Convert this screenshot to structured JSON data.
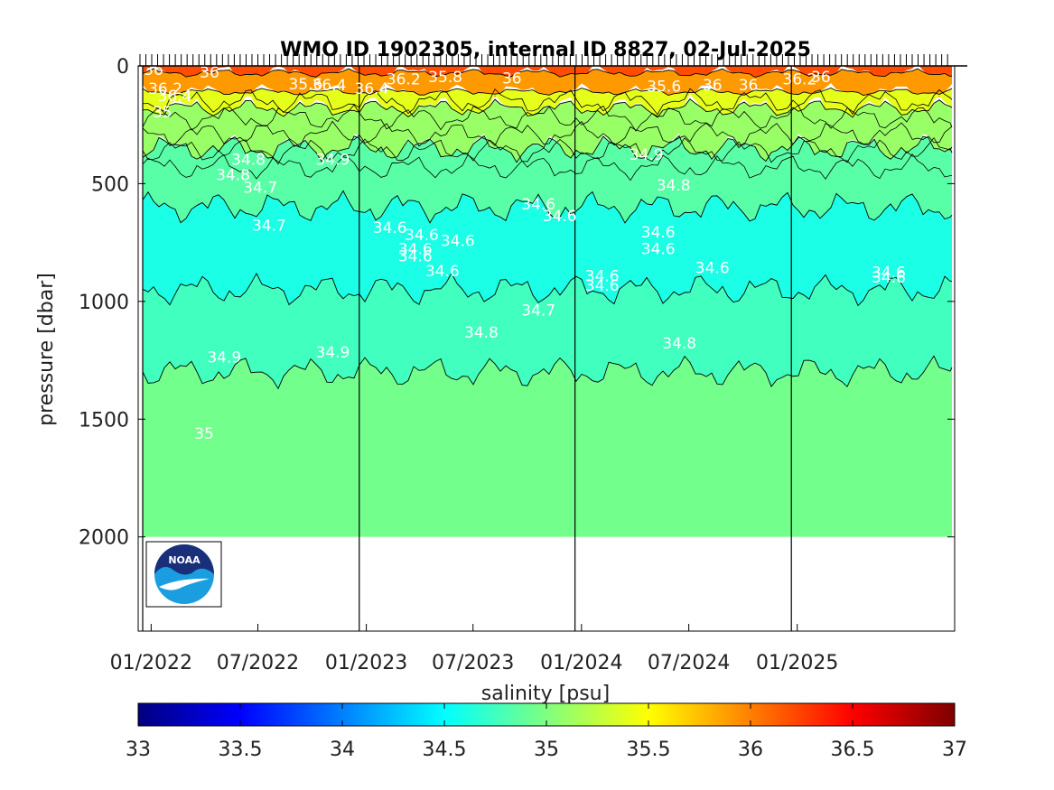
{
  "chart_data": {
    "type": "heatmap",
    "title": "WMO ID 1902305, internal ID 8827, 02-Jul-2025",
    "ylabel": "pressure [dbar]",
    "colorbar_label": "salinity [psu]",
    "y_reversed": true,
    "ylim": [
      0,
      2400
    ],
    "xlim": [
      "2021-12-10",
      "2025-09-25"
    ],
    "x_ticks": [
      {
        "date": "2022-01-01",
        "label": "01/2022"
      },
      {
        "date": "2022-07-01",
        "label": "07/2022"
      },
      {
        "date": "2023-01-01",
        "label": "01/2023"
      },
      {
        "date": "2023-07-01",
        "label": "07/2023"
      },
      {
        "date": "2024-01-01",
        "label": "01/2024"
      },
      {
        "date": "2024-07-01",
        "label": "07/2024"
      },
      {
        "date": "2025-01-01",
        "label": "01/2025"
      }
    ],
    "y_ticks": [
      0,
      500,
      1000,
      1500,
      2000
    ],
    "year_lines": [
      "2022-12-20",
      "2023-12-21",
      "2024-12-22"
    ],
    "colorbar": {
      "min": 33,
      "max": 37,
      "ticks": [
        "33",
        "33.5",
        "34",
        "34.5",
        "35",
        "35.5",
        "36",
        "36.5",
        "37"
      ],
      "colormap": "jet"
    },
    "salinity_bands": [
      {
        "from_pressure": 0,
        "to_pressure": 30,
        "salinity": 36.2
      },
      {
        "from_pressure": 30,
        "to_pressure": 110,
        "salinity": 35.9
      },
      {
        "from_pressure": 110,
        "to_pressure": 180,
        "salinity": 35.4
      },
      {
        "from_pressure": 180,
        "to_pressure": 350,
        "salinity": 35.1
      },
      {
        "from_pressure": 350,
        "to_pressure": 600,
        "salinity": 34.85
      },
      {
        "from_pressure": 600,
        "to_pressure": 950,
        "salinity": 34.6
      },
      {
        "from_pressure": 950,
        "to_pressure": 1300,
        "salinity": 34.75
      },
      {
        "from_pressure": 1300,
        "to_pressure": 2000,
        "salinity": 34.95
      }
    ],
    "profile_max_pressure": 2000,
    "contour_labels": [
      {
        "text": "36",
        "date": "2022-01-05",
        "p": 20
      },
      {
        "text": "36.2",
        "date": "2022-01-25",
        "p": 100
      },
      {
        "text": "36.4",
        "date": "2022-02-10",
        "p": 130
      },
      {
        "text": "35",
        "date": "2022-01-20",
        "p": 200
      },
      {
        "text": "36",
        "date": "2022-04-10",
        "p": 30
      },
      {
        "text": "35.6",
        "date": "2022-09-20",
        "p": 80
      },
      {
        "text": "36.4",
        "date": "2022-10-30",
        "p": 85
      },
      {
        "text": "36.4",
        "date": "2023-01-10",
        "p": 100
      },
      {
        "text": "36.2",
        "date": "2023-03-05",
        "p": 60
      },
      {
        "text": "35.8",
        "date": "2023-05-15",
        "p": 50
      },
      {
        "text": "36",
        "date": "2023-09-05",
        "p": 55
      },
      {
        "text": "35.6",
        "date": "2024-05-20",
        "p": 90
      },
      {
        "text": "36",
        "date": "2024-08-10",
        "p": 85
      },
      {
        "text": "36",
        "date": "2024-10-10",
        "p": 85
      },
      {
        "text": "36.2",
        "date": "2025-01-05",
        "p": 60
      },
      {
        "text": "36",
        "date": "2025-02-10",
        "p": 50
      },
      {
        "text": "34.8",
        "date": "2022-06-15",
        "p": 400
      },
      {
        "text": "34.8",
        "date": "2022-05-20",
        "p": 465
      },
      {
        "text": "34.7",
        "date": "2022-07-05",
        "p": 520
      },
      {
        "text": "34.9",
        "date": "2022-11-05",
        "p": 400
      },
      {
        "text": "34.7",
        "date": "2022-07-20",
        "p": 680
      },
      {
        "text": "34.6",
        "date": "2023-02-10",
        "p": 690
      },
      {
        "text": "34.6",
        "date": "2023-04-05",
        "p": 720
      },
      {
        "text": "34.6",
        "date": "2023-03-25",
        "p": 780
      },
      {
        "text": "34.6",
        "date": "2023-03-25",
        "p": 810
      },
      {
        "text": "34.6",
        "date": "2023-06-05",
        "p": 745
      },
      {
        "text": "34.6",
        "date": "2023-05-10",
        "p": 875
      },
      {
        "text": "34.6",
        "date": "2023-10-20",
        "p": 590
      },
      {
        "text": "34.6",
        "date": "2023-11-25",
        "p": 640
      },
      {
        "text": "34.9",
        "date": "2024-04-20",
        "p": 380
      },
      {
        "text": "34.8",
        "date": "2024-06-05",
        "p": 510
      },
      {
        "text": "34.6",
        "date": "2024-05-10",
        "p": 710
      },
      {
        "text": "34.6",
        "date": "2024-05-10",
        "p": 780
      },
      {
        "text": "34.6",
        "date": "2024-02-05",
        "p": 895
      },
      {
        "text": "34.6",
        "date": "2024-02-05",
        "p": 935
      },
      {
        "text": "34.6",
        "date": "2024-08-10",
        "p": 860
      },
      {
        "text": "34.6",
        "date": "2025-06-05",
        "p": 880
      },
      {
        "text": "34.6",
        "date": "2025-06-05",
        "p": 900
      },
      {
        "text": "34.7",
        "date": "2023-10-20",
        "p": 1040
      },
      {
        "text": "34.8",
        "date": "2023-07-15",
        "p": 1135
      },
      {
        "text": "34.8",
        "date": "2024-06-15",
        "p": 1180
      },
      {
        "text": "34.9",
        "date": "2022-05-05",
        "p": 1240
      },
      {
        "text": "34.9",
        "date": "2022-11-05",
        "p": 1220
      },
      {
        "text": "35",
        "date": "2022-04-01",
        "p": 1565
      }
    ]
  },
  "logo": {
    "text": "NOAA",
    "icon": "noaa-logo-icon"
  }
}
